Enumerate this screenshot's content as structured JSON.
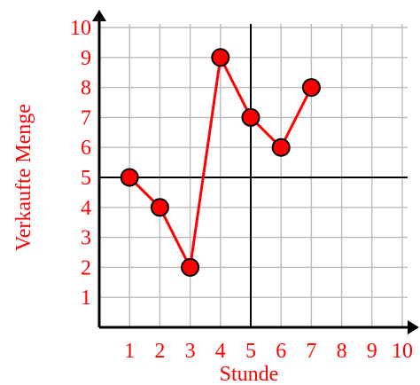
{
  "chart_data": {
    "type": "line",
    "title": "",
    "xlabel": "Stunde",
    "ylabel": "Verkaufte Menge",
    "x": [
      1,
      2,
      3,
      4,
      5,
      6,
      7
    ],
    "y": [
      5,
      4,
      2,
      9,
      7,
      6,
      8
    ],
    "xlim": [
      0,
      10
    ],
    "ylim": [
      0,
      10
    ],
    "x_ticks": [
      "1",
      "2",
      "3",
      "4",
      "5",
      "6",
      "7",
      "8",
      "9",
      "10"
    ],
    "y_ticks": [
      "1",
      "2",
      "3",
      "4",
      "5",
      "6",
      "7",
      "8",
      "9",
      "10"
    ],
    "reference_lines": {
      "x": 5,
      "y": 5
    },
    "grid": true,
    "colors": {
      "line": "#ff0000",
      "marker_fill": "#ff0000",
      "marker_stroke": "#000000",
      "text": "#ff0000",
      "grid": "#bbbbbb",
      "axis": "#000000"
    }
  }
}
